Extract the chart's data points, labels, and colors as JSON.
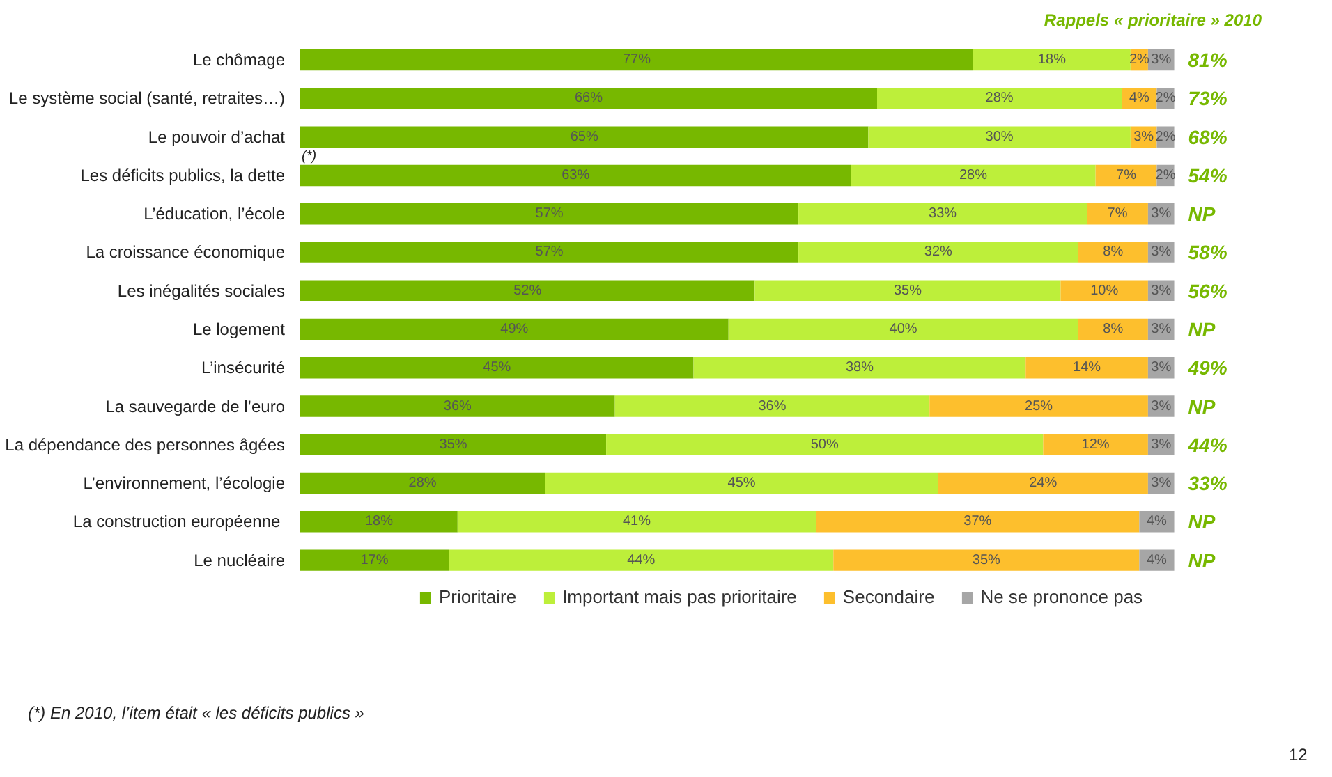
{
  "chart_data": {
    "type": "bar",
    "orientation": "horizontal",
    "stacked": true,
    "legend": "bottom",
    "grid": false,
    "tick_labels": "y",
    "categories": [
      "Le chômage",
      "Le système social (santé, retraites…)",
      "Le pouvoir d’achat",
      "Les déficits publics, la dette",
      "L’éducation, l’école",
      "La croissance économique",
      "Les inégalités sociales",
      "Le logement",
      "L’insécurité",
      "La sauvegarde de l’euro",
      "La dépendance des personnes âgées",
      "L’environnement, l’écologie",
      "La  construction européenne",
      "Le nucléaire"
    ],
    "series": [
      {
        "name": "Prioritaire",
        "color": "#77b800",
        "values": [
          77,
          66,
          65,
          63,
          57,
          57,
          52,
          49,
          45,
          36,
          35,
          28,
          18,
          17
        ],
        "value_labels": [
          "77%",
          "66%",
          "65%",
          "63%",
          "57%",
          "57%",
          "52%",
          "49%",
          "45%",
          "36%",
          "35%",
          "28%",
          "18%",
          "17%"
        ]
      },
      {
        "name": "Important mais pas prioritaire",
        "color": "#bdef3a",
        "values": [
          18,
          28,
          30,
          28,
          33,
          32,
          35,
          40,
          38,
          36,
          50,
          45,
          41,
          44
        ],
        "value_labels": [
          "18%",
          "28%",
          "30%",
          "28%",
          "33%",
          "32%",
          "35%",
          "40%",
          "38%",
          "36%",
          "50%",
          "45%",
          "41%",
          "44%"
        ]
      },
      {
        "name": "Secondaire",
        "color": "#fdbf2d",
        "values": [
          2,
          4,
          3,
          7,
          7,
          8,
          10,
          8,
          14,
          25,
          12,
          24,
          37,
          35
        ],
        "value_labels": [
          "2%",
          "4%",
          "3%",
          "7%",
          "7%",
          "8%",
          "10%",
          "8%",
          "14%",
          "25%",
          "12%",
          "24%",
          "37%",
          "35%"
        ]
      },
      {
        "name": "Ne se prononce pas",
        "color": "#a6a6a6",
        "values": [
          3,
          2,
          2,
          2,
          3,
          3,
          3,
          3,
          3,
          3,
          3,
          3,
          4,
          4
        ],
        "value_labels": [
          "3%",
          "2%",
          "2%",
          "2%",
          "3%",
          "3%",
          "3%",
          "3%",
          "3%",
          "3%",
          "3%",
          "3%",
          "4%",
          "4%"
        ]
      }
    ],
    "annotations": [
      "Rappels « prioritaire » 2010",
      "(*) En 2010, l’item était « les déficits publics »",
      "12",
      {
        "text": "(*)",
        "x": 0,
        "y": "Les déficits publics, la dette"
      },
      "81%",
      "73%",
      "68%",
      "54%",
      "NP",
      "58%",
      "56%",
      "NP",
      "49%",
      "NP",
      "44%",
      "33%",
      "NP",
      "NP"
    ]
  }
}
